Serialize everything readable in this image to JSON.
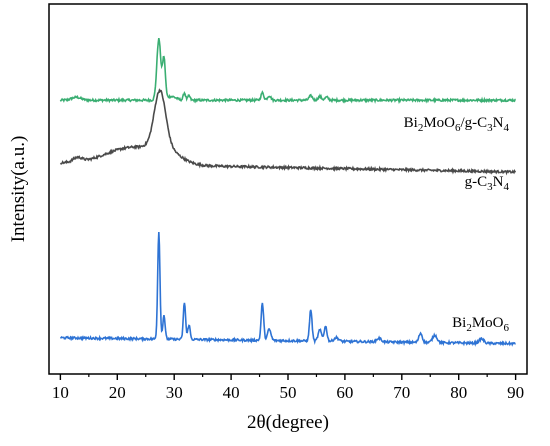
{
  "chart_data": {
    "type": "line",
    "title": "",
    "xlabel": "2θ(degree)",
    "ylabel": "Intensity(a.u.)",
    "xlim": [
      8,
      92
    ],
    "ylim": [
      0,
      1
    ],
    "y_ticks_shown": false,
    "x_ticks": [
      10,
      20,
      30,
      40,
      50,
      60,
      70,
      80,
      90
    ],
    "x_tick_labels": [
      "10",
      "20",
      "30",
      "40",
      "50",
      "60",
      "70",
      "80",
      "90"
    ],
    "grid": false,
    "legend": "none",
    "series": [
      {
        "name": "Bi2MoO6/g-C3N4",
        "label_parts": [
          {
            "t": "Bi",
            "s": ""
          },
          {
            "t": "2",
            "s": "sub"
          },
          {
            "t": "MoO",
            "s": ""
          },
          {
            "t": "6",
            "s": "sub"
          },
          {
            "t": "/g-C",
            "s": ""
          },
          {
            "t": "3",
            "s": "sub"
          },
          {
            "t": "N",
            "s": ""
          },
          {
            "t": "4",
            "s": "sub"
          }
        ],
        "color": "#3aae72",
        "baseline": 0.74,
        "slope": 0.0,
        "peaks": [
          [
            12.8,
            0.008,
            0.8
          ],
          [
            27.3,
            0.165,
            0.35
          ],
          [
            28.2,
            0.11,
            0.25
          ],
          [
            29.5,
            0.01,
            0.8
          ],
          [
            31.8,
            0.02,
            0.2
          ],
          [
            32.6,
            0.012,
            0.2
          ],
          [
            45.5,
            0.02,
            0.25
          ],
          [
            46.7,
            0.012,
            0.3
          ],
          [
            54.0,
            0.012,
            0.3
          ],
          [
            55.6,
            0.01,
            0.3
          ],
          [
            56.8,
            0.008,
            0.3
          ]
        ]
      },
      {
        "name": "g-C3N4",
        "label_parts": [
          {
            "t": "g-C",
            "s": ""
          },
          {
            "t": "3",
            "s": "sub"
          },
          {
            "t": "N",
            "s": ""
          },
          {
            "t": "4",
            "s": "sub"
          }
        ],
        "color": "#4a4a4a",
        "baseline": 0.57,
        "slope": -0.0003,
        "peaks": [
          [
            13.0,
            0.012,
            0.8
          ],
          [
            22.5,
            0.045,
            4.5
          ],
          [
            27.5,
            0.15,
            1.0
          ],
          [
            28.5,
            0.03,
            2.5
          ]
        ]
      },
      {
        "name": "Bi2MoO6",
        "label_parts": [
          {
            "t": "Bi",
            "s": ""
          },
          {
            "t": "2",
            "s": "sub"
          },
          {
            "t": "MoO",
            "s": ""
          },
          {
            "t": "6",
            "s": "sub"
          }
        ],
        "color": "#2e73d4",
        "baseline": 0.098,
        "slope": -0.0002,
        "peaks": [
          [
            27.3,
            0.29,
            0.2
          ],
          [
            28.2,
            0.065,
            0.2
          ],
          [
            31.8,
            0.1,
            0.2
          ],
          [
            32.6,
            0.04,
            0.2
          ],
          [
            45.5,
            0.1,
            0.22
          ],
          [
            46.7,
            0.03,
            0.3
          ],
          [
            54.0,
            0.085,
            0.22
          ],
          [
            55.6,
            0.03,
            0.3
          ],
          [
            56.6,
            0.04,
            0.25
          ],
          [
            58.5,
            0.01,
            0.4
          ],
          [
            66.0,
            0.01,
            0.4
          ],
          [
            73.3,
            0.025,
            0.3
          ],
          [
            75.8,
            0.02,
            0.4
          ],
          [
            84.0,
            0.012,
            0.4
          ]
        ]
      }
    ]
  }
}
